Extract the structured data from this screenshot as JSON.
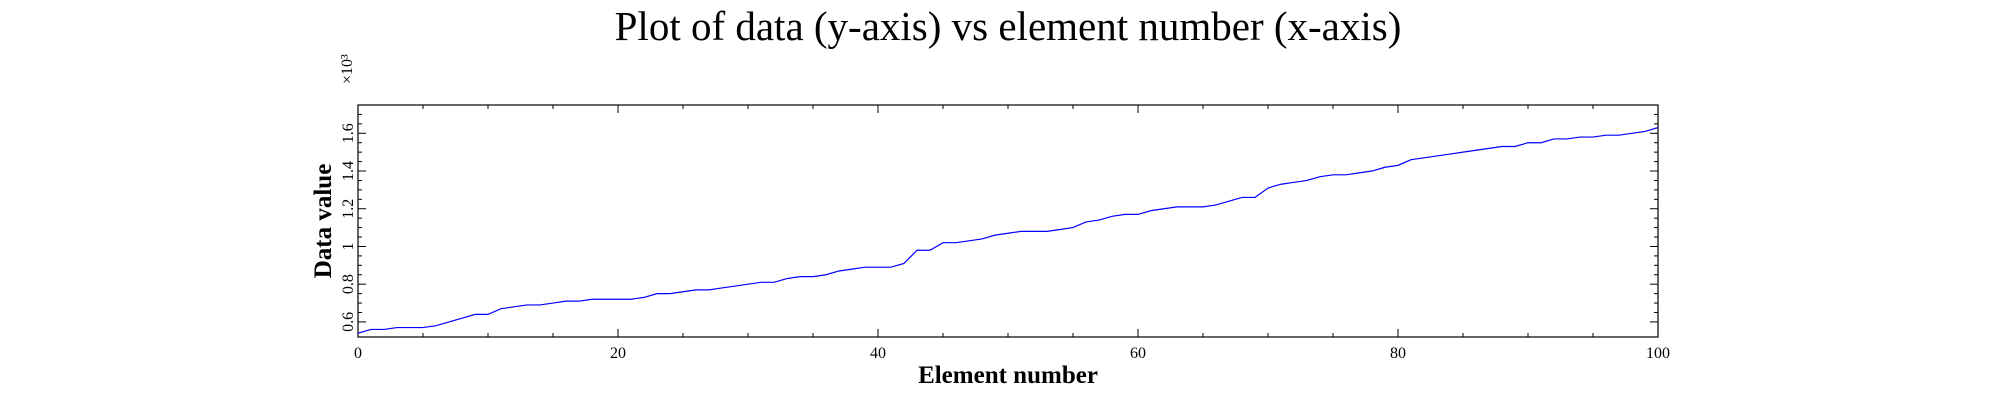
{
  "chart_data": {
    "type": "line",
    "title": "Plot of data (y-axis) vs element number (x-axis)",
    "xlabel": "Element number",
    "ylabel": "Data value",
    "y_multiplier": "×10³",
    "xlim": [
      0,
      100
    ],
    "ylim": [
      0.52,
      1.75
    ],
    "x_ticks": [
      0,
      20,
      40,
      60,
      80,
      100
    ],
    "x_tick_labels": [
      "0",
      "20",
      "40",
      "60",
      "80",
      "100"
    ],
    "y_ticks": [
      0.6,
      0.8,
      1.0,
      1.2,
      1.4,
      1.6
    ],
    "y_tick_labels": [
      "0.6",
      "0.8",
      "1",
      "1.2",
      "1.4",
      "1.6"
    ],
    "grid": false,
    "line_color": "#0000ff",
    "series": [
      {
        "x": [
          0,
          1,
          2,
          3,
          4,
          5,
          6,
          7,
          8,
          9,
          10,
          11,
          12,
          13,
          14,
          15,
          16,
          17,
          18,
          19,
          20,
          21,
          22,
          23,
          24,
          25,
          26,
          27,
          28,
          29,
          30,
          31,
          32,
          33,
          34,
          35,
          36,
          37,
          38,
          39,
          40,
          41,
          42,
          43,
          44,
          45,
          46,
          47,
          48,
          49,
          50,
          51,
          52,
          53,
          54,
          55,
          56,
          57,
          58,
          59,
          60,
          61,
          62,
          63,
          64,
          65,
          66,
          67,
          68,
          69,
          70,
          71,
          72,
          73,
          74,
          75,
          76,
          77,
          78,
          79,
          80,
          81,
          82,
          83,
          84,
          85,
          86,
          87,
          88,
          89,
          90,
          91,
          92,
          93,
          94,
          95,
          96,
          97,
          98,
          99,
          100
        ],
        "values": [
          0.54,
          0.56,
          0.56,
          0.57,
          0.57,
          0.57,
          0.58,
          0.6,
          0.62,
          0.64,
          0.64,
          0.67,
          0.68,
          0.69,
          0.69,
          0.7,
          0.71,
          0.71,
          0.72,
          0.72,
          0.72,
          0.72,
          0.73,
          0.75,
          0.75,
          0.76,
          0.77,
          0.77,
          0.78,
          0.79,
          0.8,
          0.81,
          0.81,
          0.83,
          0.84,
          0.84,
          0.85,
          0.87,
          0.88,
          0.89,
          0.89,
          0.89,
          0.91,
          0.98,
          0.98,
          1.02,
          1.02,
          1.03,
          1.04,
          1.06,
          1.07,
          1.08,
          1.08,
          1.08,
          1.09,
          1.1,
          1.13,
          1.14,
          1.16,
          1.17,
          1.17,
          1.19,
          1.2,
          1.21,
          1.21,
          1.21,
          1.22,
          1.24,
          1.26,
          1.26,
          1.31,
          1.33,
          1.34,
          1.35,
          1.37,
          1.38,
          1.38,
          1.39,
          1.4,
          1.42,
          1.43,
          1.46,
          1.47,
          1.48,
          1.49,
          1.5,
          1.51,
          1.52,
          1.53,
          1.53,
          1.55,
          1.55,
          1.57,
          1.57,
          1.58,
          1.58,
          1.59,
          1.59,
          1.6,
          1.61,
          1.63
        ]
      }
    ]
  }
}
